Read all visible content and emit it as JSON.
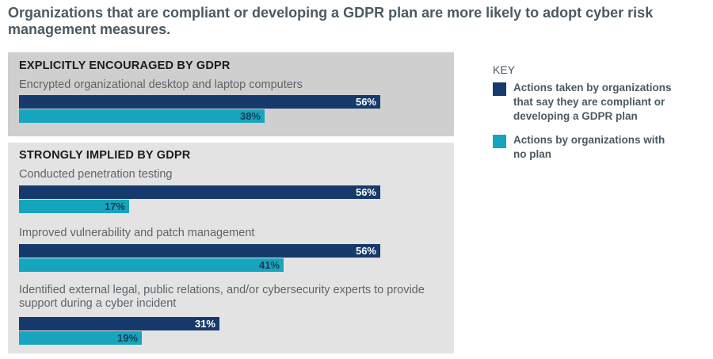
{
  "title": "Organizations that are compliant or developing a GDPR plan are more likely to adopt cyber risk management measures.",
  "key": {
    "title": "KEY",
    "items": [
      {
        "label": "Actions taken by organizations that say they are compliant or developing a GDPR plan",
        "color": "#163a6b"
      },
      {
        "label": "Actions by organizations with no plan",
        "color": "#17a5bd"
      }
    ]
  },
  "chart_data": {
    "type": "bar",
    "orientation": "horizontal",
    "title": "Organizations that are compliant or developing a GDPR plan are more likely to adopt cyber risk management measures.",
    "unit": "%",
    "xlim": [
      0,
      100
    ],
    "series_names": [
      "Actions taken by organizations that say they are compliant or developing a GDPR plan",
      "Actions by organizations with no plan"
    ],
    "groups": [
      {
        "heading": "EXPLICITLY ENCOURAGED BY GDPR",
        "categories": [
          {
            "label": "Encrypted organizational desktop and laptop computers",
            "values": [
              56,
              38
            ],
            "labels": [
              "56%",
              "38%"
            ]
          }
        ]
      },
      {
        "heading": "STRONGLY IMPLIED BY GDPR",
        "categories": [
          {
            "label": "Conducted penetration testing",
            "values": [
              56,
              17
            ],
            "labels": [
              "56%",
              "17%"
            ]
          },
          {
            "label": "Improved vulnerability and patch management",
            "values": [
              56,
              41
            ],
            "labels": [
              "56%",
              "41%"
            ]
          },
          {
            "label": "Identified external legal, public relations, and/or cybersecurity experts to provide support during a cyber incident",
            "values": [
              31,
              19
            ],
            "labels": [
              "31%",
              "19%"
            ]
          }
        ]
      }
    ]
  }
}
